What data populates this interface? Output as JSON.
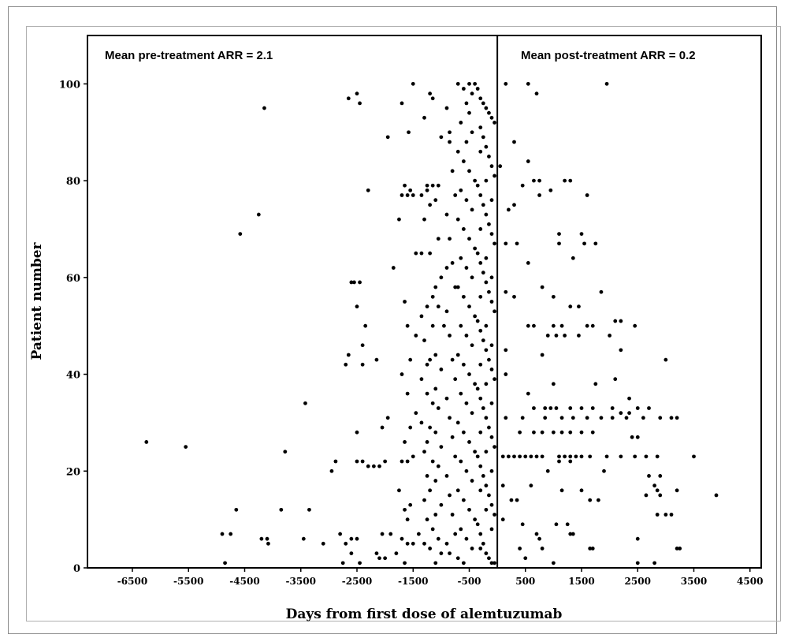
{
  "chart_data": {
    "type": "scatter",
    "xlabel": "Days from first dose of alemtuzumab",
    "ylabel": "Patient number",
    "xlim": [
      -7300,
      4700
    ],
    "ylim": [
      0,
      110
    ],
    "x_ticks": [
      -6500,
      -5500,
      -4500,
      -3500,
      -2500,
      -1500,
      -500,
      500,
      1500,
      2500,
      3500,
      4500
    ],
    "x_tick_labels": [
      "-6500",
      "-5500",
      "-4500",
      "-3500",
      "-2500",
      "-1500",
      "-500",
      "500",
      "1500",
      "2500",
      "3500",
      "4500"
    ],
    "y_ticks": [
      0,
      20,
      40,
      60,
      80,
      100
    ],
    "y_tick_labels": [
      "0",
      "20",
      "40",
      "60",
      "80",
      "100"
    ],
    "reference_line_x": 0,
    "grid": false,
    "annotations": {
      "pre": "Mean pre-treatment ARR = 2.1",
      "post": "Mean post-treatment ARR = 0.2"
    },
    "points": [
      [
        -6250,
        26
      ],
      [
        -5550,
        25
      ],
      [
        -4900,
        7
      ],
      [
        -4750,
        7
      ],
      [
        -4650,
        12
      ],
      [
        -4580,
        69
      ],
      [
        -4250,
        73
      ],
      [
        -4150,
        95
      ],
      [
        -4200,
        6
      ],
      [
        -4100,
        6
      ],
      [
        -4080,
        5
      ],
      [
        -3850,
        12
      ],
      [
        -3780,
        24
      ],
      [
        -3420,
        34
      ],
      [
        -3350,
        12
      ],
      [
        -3450,
        6
      ],
      [
        -3100,
        5
      ],
      [
        -2950,
        20
      ],
      [
        -2880,
        22
      ],
      [
        -4850,
        1
      ],
      [
        -2800,
        7
      ],
      [
        -2650,
        97
      ],
      [
        -2500,
        98
      ],
      [
        -2450,
        96
      ],
      [
        -2600,
        59
      ],
      [
        -2550,
        59
      ],
      [
        -2450,
        59
      ],
      [
        -2500,
        54
      ],
      [
        -2350,
        50
      ],
      [
        -2400,
        46
      ],
      [
        -2650,
        44
      ],
      [
        -2700,
        42
      ],
      [
        -2400,
        42
      ],
      [
        -2500,
        28
      ],
      [
        -2500,
        22
      ],
      [
        -2400,
        22
      ],
      [
        -2300,
        21
      ],
      [
        -2200,
        21
      ],
      [
        -2100,
        21
      ],
      [
        -2600,
        6
      ],
      [
        -2500,
        6
      ],
      [
        -2700,
        5
      ],
      [
        -2600,
        3
      ],
      [
        -2750,
        1
      ],
      [
        -2450,
        1
      ],
      [
        -2300,
        78
      ],
      [
        -2150,
        43
      ],
      [
        -2050,
        29
      ],
      [
        -1950,
        31
      ],
      [
        -2000,
        22
      ],
      [
        -1900,
        7
      ],
      [
        -2050,
        7
      ],
      [
        -2150,
        3
      ],
      [
        -2100,
        2
      ],
      [
        -2000,
        2
      ],
      [
        -1500,
        100
      ],
      [
        -1950,
        89
      ],
      [
        -1700,
        96
      ],
      [
        -1580,
        90
      ],
      [
        -1750,
        72
      ],
      [
        -1700,
        77
      ],
      [
        -1600,
        77
      ],
      [
        -1500,
        77
      ],
      [
        -1650,
        79
      ],
      [
        -1550,
        78
      ],
      [
        -1850,
        62
      ],
      [
        -1450,
        65
      ],
      [
        -1650,
        55
      ],
      [
        -1600,
        50
      ],
      [
        -1450,
        48
      ],
      [
        -1700,
        40
      ],
      [
        -1550,
        43
      ],
      [
        -1600,
        36
      ],
      [
        -1450,
        32
      ],
      [
        -1550,
        29
      ],
      [
        -1650,
        26
      ],
      [
        -1700,
        22
      ],
      [
        -1600,
        22
      ],
      [
        -1500,
        23
      ],
      [
        -1750,
        16
      ],
      [
        -1650,
        12
      ],
      [
        -1550,
        13
      ],
      [
        -1600,
        10
      ],
      [
        -1700,
        6
      ],
      [
        -1600,
        5
      ],
      [
        -1500,
        5
      ],
      [
        -1400,
        7
      ],
      [
        -1800,
        3
      ],
      [
        -1650,
        1
      ],
      [
        -1200,
        98
      ],
      [
        -1150,
        97
      ],
      [
        -1000,
        89
      ],
      [
        -850,
        90
      ],
      [
        -1300,
        93
      ],
      [
        -1250,
        79
      ],
      [
        -1150,
        79
      ],
      [
        -1050,
        79
      ],
      [
        -1350,
        77
      ],
      [
        -1250,
        78
      ],
      [
        -1200,
        75
      ],
      [
        -1100,
        76
      ],
      [
        -1300,
        72
      ],
      [
        -1050,
        68
      ],
      [
        -1200,
        65
      ],
      [
        -1350,
        65
      ],
      [
        -1000,
        60
      ],
      [
        -1100,
        58
      ],
      [
        -900,
        62
      ],
      [
        -1150,
        56
      ],
      [
        -1250,
        54
      ],
      [
        -1050,
        54
      ],
      [
        -1350,
        52
      ],
      [
        -1150,
        50
      ],
      [
        -950,
        50
      ],
      [
        -1300,
        47
      ],
      [
        -1100,
        44
      ],
      [
        -1200,
        43
      ],
      [
        -1250,
        42
      ],
      [
        -1000,
        41
      ],
      [
        -1350,
        39
      ],
      [
        -1100,
        37
      ],
      [
        -1250,
        36
      ],
      [
        -1150,
        34
      ],
      [
        -1050,
        33
      ],
      [
        -1350,
        30
      ],
      [
        -1200,
        29
      ],
      [
        -1100,
        28
      ],
      [
        -1250,
        26
      ],
      [
        -1000,
        25
      ],
      [
        -1300,
        24
      ],
      [
        -1150,
        22
      ],
      [
        -1050,
        21
      ],
      [
        -1250,
        19
      ],
      [
        -1100,
        18
      ],
      [
        -1200,
        16
      ],
      [
        -1300,
        14
      ],
      [
        -1000,
        13
      ],
      [
        -1100,
        11
      ],
      [
        -1250,
        10
      ],
      [
        -1150,
        8
      ],
      [
        -1050,
        6
      ],
      [
        -1300,
        5
      ],
      [
        -1200,
        4
      ],
      [
        -1000,
        3
      ],
      [
        -1100,
        1
      ],
      [
        -700,
        100
      ],
      [
        -600,
        99
      ],
      [
        -500,
        100
      ],
      [
        -450,
        98
      ],
      [
        -400,
        100
      ],
      [
        -550,
        96
      ],
      [
        -500,
        94
      ],
      [
        -650,
        92
      ],
      [
        -450,
        90
      ],
      [
        -550,
        88
      ],
      [
        -700,
        86
      ],
      [
        -600,
        84
      ],
      [
        -500,
        82
      ],
      [
        -400,
        80
      ],
      [
        -650,
        78
      ],
      [
        -550,
        76
      ],
      [
        -450,
        74
      ],
      [
        -700,
        72
      ],
      [
        -600,
        70
      ],
      [
        -500,
        68
      ],
      [
        -400,
        66
      ],
      [
        -650,
        64
      ],
      [
        -550,
        62
      ],
      [
        -450,
        60
      ],
      [
        -700,
        58
      ],
      [
        -600,
        56
      ],
      [
        -500,
        54
      ],
      [
        -400,
        52
      ],
      [
        -650,
        50
      ],
      [
        -550,
        48
      ],
      [
        -450,
        46
      ],
      [
        -700,
        44
      ],
      [
        -600,
        42
      ],
      [
        -500,
        40
      ],
      [
        -400,
        38
      ],
      [
        -650,
        36
      ],
      [
        -550,
        34
      ],
      [
        -450,
        32
      ],
      [
        -700,
        30
      ],
      [
        -600,
        28
      ],
      [
        -500,
        26
      ],
      [
        -400,
        24
      ],
      [
        -650,
        22
      ],
      [
        -550,
        20
      ],
      [
        -450,
        18
      ],
      [
        -700,
        16
      ],
      [
        -600,
        14
      ],
      [
        -500,
        12
      ],
      [
        -400,
        10
      ],
      [
        -650,
        8
      ],
      [
        -550,
        6
      ],
      [
        -450,
        4
      ],
      [
        -700,
        2
      ],
      [
        -600,
        1
      ],
      [
        -900,
        95
      ],
      [
        -850,
        88
      ],
      [
        -800,
        82
      ],
      [
        -750,
        77
      ],
      [
        -900,
        73
      ],
      [
        -850,
        68
      ],
      [
        -800,
        63
      ],
      [
        -750,
        58
      ],
      [
        -900,
        53
      ],
      [
        -850,
        48
      ],
      [
        -800,
        43
      ],
      [
        -750,
        39
      ],
      [
        -900,
        35
      ],
      [
        -850,
        31
      ],
      [
        -800,
        27
      ],
      [
        -750,
        23
      ],
      [
        -900,
        19
      ],
      [
        -850,
        15
      ],
      [
        -800,
        11
      ],
      [
        -750,
        7
      ],
      [
        -900,
        5
      ],
      [
        -850,
        3
      ],
      [
        -350,
        99
      ],
      [
        -300,
        97
      ],
      [
        -250,
        96
      ],
      [
        -200,
        95
      ],
      [
        -150,
        94
      ],
      [
        -100,
        93
      ],
      [
        -50,
        92
      ],
      [
        -300,
        91
      ],
      [
        -250,
        89
      ],
      [
        -200,
        87
      ],
      [
        -150,
        85
      ],
      [
        -100,
        83
      ],
      [
        -50,
        81
      ],
      [
        -350,
        79
      ],
      [
        -300,
        77
      ],
      [
        -250,
        75
      ],
      [
        -200,
        73
      ],
      [
        -150,
        71
      ],
      [
        -100,
        69
      ],
      [
        -50,
        67
      ],
      [
        -350,
        65
      ],
      [
        -300,
        63
      ],
      [
        -250,
        61
      ],
      [
        -200,
        59
      ],
      [
        -150,
        57
      ],
      [
        -100,
        55
      ],
      [
        -50,
        53
      ],
      [
        -350,
        51
      ],
      [
        -300,
        49
      ],
      [
        -250,
        47
      ],
      [
        -200,
        45
      ],
      [
        -150,
        43
      ],
      [
        -100,
        41
      ],
      [
        -50,
        39
      ],
      [
        -350,
        37
      ],
      [
        -300,
        35
      ],
      [
        -250,
        33
      ],
      [
        -200,
        31
      ],
      [
        -150,
        29
      ],
      [
        -100,
        27
      ],
      [
        -50,
        25
      ],
      [
        -350,
        23
      ],
      [
        -300,
        21
      ],
      [
        -250,
        19
      ],
      [
        -200,
        17
      ],
      [
        -150,
        15
      ],
      [
        -100,
        13
      ],
      [
        -50,
        11
      ],
      [
        -350,
        9
      ],
      [
        -300,
        7
      ],
      [
        -250,
        5
      ],
      [
        -200,
        3
      ],
      [
        -150,
        2
      ],
      [
        -100,
        1
      ],
      [
        -50,
        1
      ],
      [
        -300,
        86
      ],
      [
        -200,
        80
      ],
      [
        -100,
        76
      ],
      [
        -300,
        70
      ],
      [
        -200,
        64
      ],
      [
        -100,
        60
      ],
      [
        -300,
        56
      ],
      [
        -200,
        50
      ],
      [
        -100,
        46
      ],
      [
        -300,
        42
      ],
      [
        -200,
        38
      ],
      [
        -100,
        34
      ],
      [
        -300,
        28
      ],
      [
        -200,
        24
      ],
      [
        -100,
        20
      ],
      [
        -300,
        16
      ],
      [
        -200,
        12
      ],
      [
        -100,
        8
      ],
      [
        -300,
        4
      ],
      [
        150,
        100
      ],
      [
        550,
        100
      ],
      [
        700,
        98
      ],
      [
        1950,
        100
      ],
      [
        300,
        88
      ],
      [
        50,
        83
      ],
      [
        550,
        84
      ],
      [
        450,
        79
      ],
      [
        650,
        80
      ],
      [
        750,
        80
      ],
      [
        950,
        78
      ],
      [
        750,
        77
      ],
      [
        1200,
        80
      ],
      [
        1300,
        80
      ],
      [
        1600,
        77
      ],
      [
        200,
        74
      ],
      [
        300,
        75
      ],
      [
        1100,
        69
      ],
      [
        1500,
        69
      ],
      [
        1100,
        67
      ],
      [
        1550,
        67
      ],
      [
        150,
        67
      ],
      [
        350,
        67
      ],
      [
        1750,
        67
      ],
      [
        1350,
        64
      ],
      [
        550,
        63
      ],
      [
        800,
        58
      ],
      [
        150,
        57
      ],
      [
        300,
        56
      ],
      [
        1000,
        56
      ],
      [
        1300,
        54
      ],
      [
        1450,
        54
      ],
      [
        1850,
        57
      ],
      [
        550,
        50
      ],
      [
        650,
        50
      ],
      [
        1000,
        50
      ],
      [
        1150,
        50
      ],
      [
        1600,
        50
      ],
      [
        1700,
        50
      ],
      [
        2100,
        51
      ],
      [
        2200,
        51
      ],
      [
        900,
        48
      ],
      [
        1050,
        48
      ],
      [
        1200,
        48
      ],
      [
        1450,
        48
      ],
      [
        2000,
        48
      ],
      [
        2450,
        50
      ],
      [
        150,
        45
      ],
      [
        2200,
        45
      ],
      [
        800,
        44
      ],
      [
        3000,
        43
      ],
      [
        150,
        40
      ],
      [
        2100,
        39
      ],
      [
        1000,
        38
      ],
      [
        550,
        36
      ],
      [
        1750,
        38
      ],
      [
        650,
        33
      ],
      [
        850,
        33
      ],
      [
        950,
        33
      ],
      [
        1050,
        33
      ],
      [
        1300,
        33
      ],
      [
        1500,
        33
      ],
      [
        1700,
        33
      ],
      [
        2050,
        33
      ],
      [
        2200,
        32
      ],
      [
        2350,
        32
      ],
      [
        2500,
        33
      ],
      [
        2700,
        33
      ],
      [
        2350,
        35
      ],
      [
        2600,
        31
      ],
      [
        2900,
        31
      ],
      [
        3100,
        31
      ],
      [
        3200,
        31
      ],
      [
        150,
        31
      ],
      [
        450,
        31
      ],
      [
        850,
        31
      ],
      [
        1150,
        31
      ],
      [
        1350,
        31
      ],
      [
        1600,
        31
      ],
      [
        1850,
        31
      ],
      [
        2050,
        31
      ],
      [
        2300,
        31
      ],
      [
        400,
        28
      ],
      [
        650,
        28
      ],
      [
        800,
        28
      ],
      [
        1000,
        28
      ],
      [
        1150,
        28
      ],
      [
        1300,
        28
      ],
      [
        1500,
        28
      ],
      [
        1700,
        28
      ],
      [
        2400,
        27
      ],
      [
        2500,
        27
      ],
      [
        100,
        23
      ],
      [
        200,
        23
      ],
      [
        300,
        23
      ],
      [
        400,
        23
      ],
      [
        500,
        23
      ],
      [
        600,
        23
      ],
      [
        700,
        23
      ],
      [
        800,
        23
      ],
      [
        1100,
        23
      ],
      [
        1200,
        23
      ],
      [
        1300,
        23
      ],
      [
        1400,
        23
      ],
      [
        1500,
        23
      ],
      [
        1650,
        23
      ],
      [
        1950,
        23
      ],
      [
        2200,
        23
      ],
      [
        2450,
        23
      ],
      [
        2650,
        23
      ],
      [
        2850,
        23
      ],
      [
        3500,
        23
      ],
      [
        1100,
        22
      ],
      [
        1300,
        22
      ],
      [
        900,
        20
      ],
      [
        1900,
        20
      ],
      [
        2700,
        19
      ],
      [
        2900,
        19
      ],
      [
        100,
        17
      ],
      [
        600,
        17
      ],
      [
        1150,
        16
      ],
      [
        2650,
        15
      ],
      [
        2900,
        15
      ],
      [
        3900,
        15
      ],
      [
        250,
        14
      ],
      [
        1650,
        14
      ],
      [
        1800,
        14
      ],
      [
        2800,
        17
      ],
      [
        2850,
        16
      ],
      [
        3200,
        16
      ],
      [
        100,
        10
      ],
      [
        350,
        14
      ],
      [
        1500,
        16
      ],
      [
        2850,
        11
      ],
      [
        3000,
        11
      ],
      [
        3100,
        11
      ],
      [
        450,
        9
      ],
      [
        1050,
        9
      ],
      [
        1250,
        9
      ],
      [
        1300,
        7
      ],
      [
        1350,
        7
      ],
      [
        700,
        7
      ],
      [
        750,
        6
      ],
      [
        800,
        4
      ],
      [
        1650,
        4
      ],
      [
        1700,
        4
      ],
      [
        2500,
        6
      ],
      [
        3200,
        4
      ],
      [
        3250,
        4
      ],
      [
        1000,
        1
      ],
      [
        2500,
        1
      ],
      [
        2800,
        1
      ],
      [
        400,
        4
      ],
      [
        500,
        2
      ]
    ]
  }
}
